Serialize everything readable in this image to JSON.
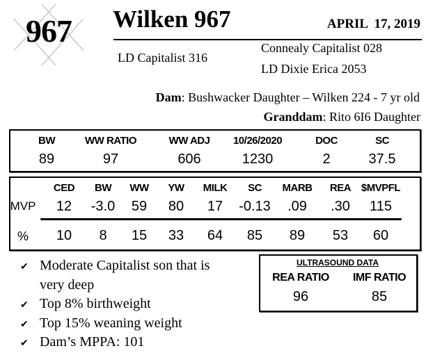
{
  "logo": {
    "number": "967"
  },
  "header": {
    "title": "Wilken 967",
    "date": "APRIL  17, 2019"
  },
  "pedigree": {
    "sire": "LD Capitalist 316",
    "sire_sire": "Connealy Capitalist 028",
    "sire_dam": "LD Dixie Erica 2053"
  },
  "dam": {
    "label": "Dam",
    "value": ": Bushwacker Daughter – Wilken 224 - 7 yr old"
  },
  "granddam": {
    "label": "Granddam",
    "value": ": Rito 6I6 Daughter"
  },
  "weights": {
    "headers": [
      "BW",
      "WW RATIO",
      "WW ADJ",
      "10/26/2020",
      "DOC",
      "SC"
    ],
    "values": [
      "89",
      "97",
      "606",
      "1230",
      "2",
      "37.5"
    ]
  },
  "epds": {
    "headers": [
      "CED",
      "BW",
      "WW",
      "YW",
      "MILK",
      "SC",
      "MARB",
      "REA",
      "$MVPFL"
    ],
    "mvp_label": "MVP",
    "mvp": [
      "12",
      "-3.0",
      "59",
      "80",
      "17",
      "-0.13",
      ".09",
      ".30",
      "115"
    ],
    "pct_label": "%",
    "pct": [
      "10",
      "8",
      "15",
      "33",
      "64",
      "85",
      "89",
      "53",
      "60"
    ]
  },
  "bullets": [
    {
      "icon": "checkmark",
      "lines": [
        "Moderate Capitalist son that is",
        "very deep"
      ]
    },
    {
      "icon": "checkmark",
      "lines": [
        "Top 8% birthweight"
      ]
    },
    {
      "icon": "checkmark",
      "lines": [
        "Top 15% weaning weight"
      ]
    },
    {
      "icon": "checkmark",
      "lines": [
        "Dam’s MPPA: 101"
      ]
    }
  ],
  "ultrasound": {
    "title": "ULTRASOUND DATA",
    "headers": [
      "REA RATIO",
      "IMF RATIO"
    ],
    "values": [
      "96",
      "85"
    ]
  }
}
